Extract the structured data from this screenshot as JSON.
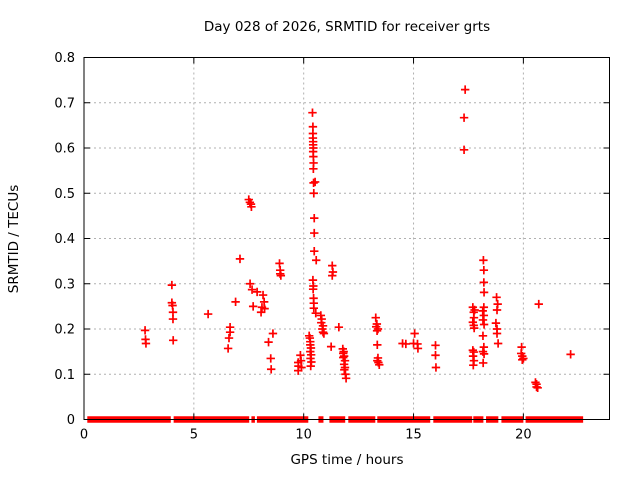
{
  "window": {
    "background": "#ffffff"
  },
  "chart_data": {
    "type": "scatter",
    "title": "Day 028 of 2026, SRMTID for receiver grts",
    "xlabel": "GPS time / hours",
    "ylabel": "SRMTID / TECUs",
    "xlim": [
      0,
      23.92
    ],
    "ylim": [
      0,
      0.8
    ],
    "xticks": [
      0,
      5,
      10,
      15,
      20
    ],
    "yticks": [
      0,
      0.1,
      0.2,
      0.3,
      0.4,
      0.5,
      0.6,
      0.7,
      0.8
    ],
    "ytick_labels": [
      "0",
      "0.1",
      "0.2",
      "0.3",
      "0.4",
      "0.5",
      "0.6",
      "0.7",
      "0.8"
    ],
    "grid": true,
    "legend": "none",
    "marker": "plus",
    "marker_color": "#ff0000",
    "grid_color": "#b0b0b0",
    "axis_color": "#000000",
    "series": [
      {
        "name": "SRMTID",
        "points": [
          [
            2.78,
            0.197
          ],
          [
            2.8,
            0.177
          ],
          [
            2.82,
            0.168
          ],
          [
            4.0,
            0.297
          ],
          [
            4.0,
            0.258
          ],
          [
            4.03,
            0.252
          ],
          [
            4.05,
            0.237
          ],
          [
            4.05,
            0.222
          ],
          [
            4.06,
            0.175
          ],
          [
            5.65,
            0.233
          ],
          [
            6.56,
            0.157
          ],
          [
            6.6,
            0.18
          ],
          [
            6.65,
            0.204
          ],
          [
            6.65,
            0.193
          ],
          [
            6.9,
            0.26
          ],
          [
            7.1,
            0.355
          ],
          [
            7.5,
            0.486
          ],
          [
            7.55,
            0.48
          ],
          [
            7.6,
            0.476
          ],
          [
            7.62,
            0.47
          ],
          [
            7.56,
            0.3
          ],
          [
            7.65,
            0.287
          ],
          [
            7.88,
            0.282
          ],
          [
            7.7,
            0.25
          ],
          [
            8.06,
            0.237
          ],
          [
            8.1,
            0.248
          ],
          [
            8.15,
            0.275
          ],
          [
            8.2,
            0.26
          ],
          [
            8.22,
            0.245
          ],
          [
            8.4,
            0.171
          ],
          [
            8.6,
            0.19
          ],
          [
            8.5,
            0.135
          ],
          [
            8.52,
            0.111
          ],
          [
            8.9,
            0.345
          ],
          [
            8.93,
            0.33
          ],
          [
            8.93,
            0.322
          ],
          [
            8.96,
            0.318
          ],
          [
            9.75,
            0.126
          ],
          [
            9.76,
            0.118
          ],
          [
            9.75,
            0.108
          ],
          [
            9.85,
            0.142
          ],
          [
            9.88,
            0.13
          ],
          [
            9.9,
            0.115
          ],
          [
            10.4,
            0.678
          ],
          [
            10.42,
            0.647
          ],
          [
            10.42,
            0.632
          ],
          [
            10.42,
            0.622
          ],
          [
            10.43,
            0.614
          ],
          [
            10.43,
            0.607
          ],
          [
            10.44,
            0.6
          ],
          [
            10.43,
            0.592
          ],
          [
            10.44,
            0.581
          ],
          [
            10.45,
            0.567
          ],
          [
            10.44,
            0.554
          ],
          [
            10.52,
            0.525
          ],
          [
            10.45,
            0.523
          ],
          [
            10.46,
            0.5
          ],
          [
            10.48,
            0.445
          ],
          [
            10.48,
            0.412
          ],
          [
            10.48,
            0.372
          ],
          [
            10.57,
            0.352
          ],
          [
            10.42,
            0.308
          ],
          [
            10.44,
            0.295
          ],
          [
            10.43,
            0.288
          ],
          [
            10.45,
            0.268
          ],
          [
            10.46,
            0.257
          ],
          [
            10.46,
            0.246
          ],
          [
            10.55,
            0.235
          ],
          [
            10.25,
            0.185
          ],
          [
            10.28,
            0.18
          ],
          [
            10.3,
            0.172
          ],
          [
            10.3,
            0.165
          ],
          [
            10.33,
            0.158
          ],
          [
            10.3,
            0.15
          ],
          [
            10.34,
            0.143
          ],
          [
            10.31,
            0.135
          ],
          [
            10.35,
            0.127
          ],
          [
            10.32,
            0.118
          ],
          [
            10.78,
            0.23
          ],
          [
            10.82,
            0.222
          ],
          [
            10.8,
            0.214
          ],
          [
            10.88,
            0.207
          ],
          [
            10.85,
            0.2
          ],
          [
            10.88,
            0.193
          ],
          [
            10.92,
            0.19
          ],
          [
            11.25,
            0.161
          ],
          [
            11.3,
            0.34
          ],
          [
            11.33,
            0.326
          ],
          [
            11.3,
            0.318
          ],
          [
            11.6,
            0.204
          ],
          [
            11.78,
            0.156
          ],
          [
            11.82,
            0.15
          ],
          [
            11.8,
            0.146
          ],
          [
            11.84,
            0.14
          ],
          [
            11.8,
            0.137
          ],
          [
            11.88,
            0.13
          ],
          [
            11.84,
            0.122
          ],
          [
            11.88,
            0.115
          ],
          [
            11.85,
            0.11
          ],
          [
            11.9,
            0.1
          ],
          [
            11.93,
            0.091
          ],
          [
            13.28,
            0.225
          ],
          [
            13.33,
            0.211
          ],
          [
            13.3,
            0.205
          ],
          [
            13.38,
            0.2
          ],
          [
            13.34,
            0.196
          ],
          [
            13.35,
            0.165
          ],
          [
            13.38,
            0.136
          ],
          [
            13.35,
            0.13
          ],
          [
            13.4,
            0.126
          ],
          [
            13.44,
            0.121
          ],
          [
            14.5,
            0.168
          ],
          [
            14.65,
            0.167
          ],
          [
            15.05,
            0.19
          ],
          [
            15.0,
            0.168
          ],
          [
            15.18,
            0.167
          ],
          [
            15.2,
            0.157
          ],
          [
            16.0,
            0.164
          ],
          [
            16.0,
            0.142
          ],
          [
            16.02,
            0.115
          ],
          [
            17.35,
            0.729
          ],
          [
            17.3,
            0.667
          ],
          [
            17.3,
            0.596
          ],
          [
            17.7,
            0.248
          ],
          [
            17.78,
            0.242
          ],
          [
            17.74,
            0.237
          ],
          [
            17.75,
            0.225
          ],
          [
            17.7,
            0.215
          ],
          [
            17.74,
            0.208
          ],
          [
            17.76,
            0.202
          ],
          [
            17.7,
            0.153
          ],
          [
            17.74,
            0.149
          ],
          [
            17.71,
            0.14
          ],
          [
            17.75,
            0.13
          ],
          [
            17.72,
            0.12
          ],
          [
            18.18,
            0.352
          ],
          [
            18.2,
            0.33
          ],
          [
            18.2,
            0.303
          ],
          [
            18.21,
            0.281
          ],
          [
            18.2,
            0.248
          ],
          [
            18.15,
            0.24
          ],
          [
            18.2,
            0.23
          ],
          [
            18.16,
            0.22
          ],
          [
            18.21,
            0.21
          ],
          [
            18.16,
            0.185
          ],
          [
            18.2,
            0.16
          ],
          [
            18.16,
            0.15
          ],
          [
            18.21,
            0.145
          ],
          [
            18.17,
            0.125
          ],
          [
            18.78,
            0.27
          ],
          [
            18.83,
            0.255
          ],
          [
            18.8,
            0.242
          ],
          [
            18.75,
            0.213
          ],
          [
            18.8,
            0.2
          ],
          [
            18.8,
            0.19
          ],
          [
            18.85,
            0.168
          ],
          [
            19.92,
            0.16
          ],
          [
            19.9,
            0.146
          ],
          [
            19.95,
            0.14
          ],
          [
            20.0,
            0.135
          ],
          [
            19.95,
            0.132
          ],
          [
            20.7,
            0.255
          ],
          [
            20.55,
            0.082
          ],
          [
            20.6,
            0.078
          ],
          [
            20.6,
            0.072
          ],
          [
            20.65,
            0.07
          ],
          [
            22.15,
            0.144
          ]
        ],
        "baseline_segments": [
          [
            0.15,
            3.95
          ],
          [
            4.08,
            7.52
          ],
          [
            7.62,
            7.78
          ],
          [
            7.87,
            10.21
          ],
          [
            10.67,
            10.9
          ],
          [
            11.17,
            11.89
          ],
          [
            12.03,
            13.26
          ],
          [
            13.35,
            15.76
          ],
          [
            15.9,
            17.67
          ],
          [
            17.72,
            18.18
          ],
          [
            18.3,
            18.86
          ],
          [
            19.0,
            20.0
          ],
          [
            20.1,
            22.72
          ]
        ]
      }
    ]
  }
}
